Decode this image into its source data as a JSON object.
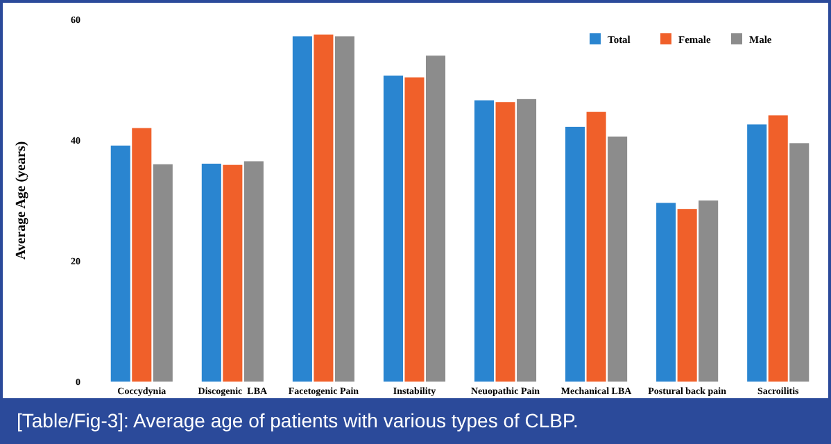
{
  "chart_data": {
    "type": "bar",
    "title": "[Table/Fig-3]: Average age of patients with various types of CLBP.",
    "ylabel": "Average Age (years)",
    "categories": [
      "Coccydynia",
      "Discogenic  LBA",
      "Facetogenic Pain",
      "Instability",
      "Neuopathic Pain",
      "Mechanical LBA",
      "Postural back pain",
      "Sacroilitis"
    ],
    "series": [
      {
        "name": "Total",
        "color": "#2a85d0",
        "values": [
          39.1,
          36.1,
          57.2,
          50.7,
          46.6,
          42.2,
          29.6,
          42.6
        ]
      },
      {
        "name": "Female",
        "color": "#f0602a",
        "values": [
          42.0,
          35.9,
          57.5,
          50.4,
          46.3,
          44.7,
          28.6,
          44.1
        ]
      },
      {
        "name": "Male",
        "color": "#8c8c8c",
        "values": [
          36.0,
          36.5,
          57.2,
          54.0,
          46.8,
          40.6,
          30.0,
          39.5
        ]
      }
    ],
    "ylim": [
      0,
      60
    ],
    "yticks": [
      0,
      20,
      40,
      60
    ],
    "grid": false,
    "legend": "top right"
  }
}
